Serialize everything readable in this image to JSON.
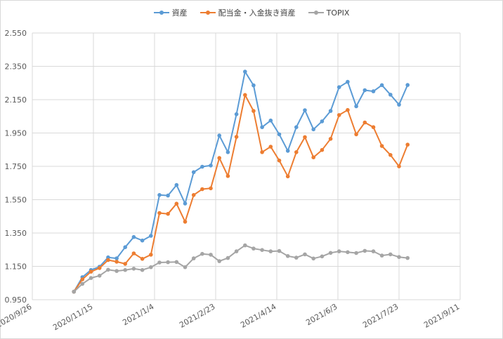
{
  "chart_data": {
    "type": "line",
    "title": "",
    "xlabel": "",
    "ylabel": "",
    "grid": true,
    "legend_position": "top",
    "ylim": [
      0.95,
      2.55
    ],
    "xlim": [
      "2020-09-26",
      "2021-09-11"
    ],
    "y_ticks": [
      "0.950",
      "1.150",
      "1.350",
      "1.550",
      "1.750",
      "1.950",
      "2.150",
      "2.350",
      "2.550"
    ],
    "x_ticks": [
      {
        "label": "2020/9/26",
        "date": "2020-09-26"
      },
      {
        "label": "2020/11/15",
        "date": "2020-11-15"
      },
      {
        "label": "2021/1/4",
        "date": "2021-01-04"
      },
      {
        "label": "2021/2/23",
        "date": "2021-02-23"
      },
      {
        "label": "2021/4/14",
        "date": "2021-04-14"
      },
      {
        "label": "2021/6/3",
        "date": "2021-06-03"
      },
      {
        "label": "2021/7/23",
        "date": "2021-07-23"
      },
      {
        "label": "2021/9/11",
        "date": "2021-09-11"
      }
    ],
    "x": [
      "2020-10-30",
      "2020-11-06",
      "2020-11-13",
      "2020-11-20",
      "2020-11-27",
      "2020-12-04",
      "2020-12-11",
      "2020-12-18",
      "2020-12-25",
      "2021-01-01",
      "2021-01-08",
      "2021-01-15",
      "2021-01-22",
      "2021-01-29",
      "2021-02-05",
      "2021-02-12",
      "2021-02-19",
      "2021-02-26",
      "2021-03-05",
      "2021-03-12",
      "2021-03-19",
      "2021-03-26",
      "2021-04-02",
      "2021-04-09",
      "2021-04-16",
      "2021-04-23",
      "2021-04-30",
      "2021-05-07",
      "2021-05-14",
      "2021-05-21",
      "2021-05-28",
      "2021-06-04",
      "2021-06-11",
      "2021-06-18",
      "2021-06-25",
      "2021-07-02",
      "2021-07-09",
      "2021-07-16",
      "2021-07-23",
      "2021-07-30",
      "2021-08-06",
      "2021-08-13"
    ],
    "series": [
      {
        "name": "資産",
        "color": "#5b9bd5",
        "values": [
          0.998,
          1.085,
          1.128,
          1.148,
          1.204,
          1.198,
          1.265,
          1.326,
          1.305,
          1.333,
          1.578,
          1.575,
          1.638,
          1.527,
          1.715,
          1.748,
          1.755,
          1.935,
          1.835,
          2.063,
          2.318,
          2.236,
          1.985,
          2.025,
          1.942,
          1.843,
          1.985,
          2.087,
          1.972,
          2.02,
          2.082,
          2.225,
          2.257,
          2.11,
          2.207,
          2.2,
          2.237,
          2.18,
          2.12,
          2.238,
          null,
          null
        ]
      },
      {
        "name": "配当金・入金抜き資産",
        "color": "#ed7d31",
        "values": [
          0.998,
          1.072,
          1.118,
          1.14,
          1.188,
          1.178,
          1.165,
          1.228,
          1.195,
          1.22,
          1.47,
          1.465,
          1.526,
          1.418,
          1.578,
          1.613,
          1.618,
          1.8,
          1.692,
          1.927,
          2.178,
          2.082,
          1.835,
          1.868,
          1.785,
          1.69,
          1.835,
          1.925,
          1.804,
          1.848,
          1.915,
          2.058,
          2.088,
          1.942,
          2.013,
          1.985,
          1.872,
          1.818,
          1.75,
          1.88,
          null,
          null
        ]
      },
      {
        "name": "TOPIX",
        "color": "#a5a5a5",
        "values": [
          0.998,
          1.045,
          1.08,
          1.094,
          1.13,
          1.122,
          1.128,
          1.136,
          1.128,
          1.145,
          1.173,
          1.175,
          1.176,
          1.145,
          1.198,
          1.225,
          1.22,
          1.181,
          1.2,
          1.24,
          1.276,
          1.257,
          1.248,
          1.24,
          1.242,
          1.212,
          1.202,
          1.222,
          1.197,
          1.21,
          1.231,
          1.24,
          1.235,
          1.23,
          1.243,
          1.24,
          1.215,
          1.222,
          1.206,
          1.2,
          null,
          null
        ]
      }
    ]
  },
  "legend": {
    "items": [
      {
        "label": "資産",
        "color": "#5b9bd5"
      },
      {
        "label": "配当金・入金抜き資産",
        "color": "#ed7d31"
      },
      {
        "label": "TOPIX",
        "color": "#a5a5a5"
      }
    ]
  }
}
